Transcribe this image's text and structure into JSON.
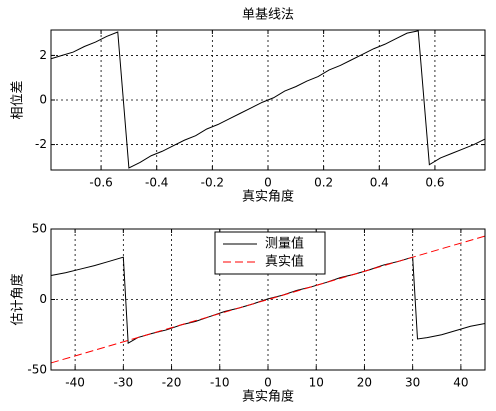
{
  "chart_data": [
    {
      "type": "line",
      "title": "单基线法",
      "xlabel": "真实角度",
      "ylabel": "相位差",
      "xlim": [
        -0.78,
        0.78
      ],
      "xticks": [
        -0.6,
        -0.4,
        -0.2,
        0,
        0.2,
        0.4,
        0.6
      ],
      "ylim": [
        -3.14,
        3.14
      ],
      "yticks": [
        -2,
        0,
        2
      ],
      "grid": true,
      "series": [
        {
          "color": "#000000",
          "linestyle": "-",
          "x": [
            -0.78,
            -0.74,
            -0.7,
            -0.66,
            -0.62,
            -0.58,
            -0.54,
            -0.5,
            -0.46,
            -0.42,
            -0.38,
            -0.34,
            -0.3,
            -0.26,
            -0.22,
            -0.18,
            -0.14,
            -0.1,
            -0.06,
            -0.02,
            0.02,
            0.06,
            0.1,
            0.14,
            0.18,
            0.22,
            0.26,
            0.3,
            0.34,
            0.38,
            0.42,
            0.46,
            0.5,
            0.54,
            0.58,
            0.62,
            0.66,
            0.7,
            0.74,
            0.78
          ],
          "values": [
            1.85,
            2.0,
            2.15,
            2.4,
            2.6,
            2.85,
            3.05,
            -3.05,
            -2.8,
            -2.5,
            -2.3,
            -2.05,
            -1.8,
            -1.6,
            -1.3,
            -1.1,
            -0.85,
            -0.6,
            -0.35,
            -0.1,
            0.1,
            0.4,
            0.6,
            0.85,
            1.05,
            1.35,
            1.55,
            1.8,
            2.05,
            2.3,
            2.5,
            2.75,
            3.0,
            3.1,
            -2.9,
            -2.6,
            -2.4,
            -2.2,
            -2.0,
            -1.75
          ]
        }
      ]
    },
    {
      "type": "line",
      "xlabel": "真实角度",
      "ylabel": "估计角度",
      "xlim": [
        -45,
        45
      ],
      "xticks": [
        -40,
        -30,
        -20,
        -10,
        0,
        10,
        20,
        30,
        40
      ],
      "ylim": [
        -50,
        50
      ],
      "yticks": [
        -50,
        0,
        50
      ],
      "grid": true,
      "legend": "top",
      "series": [
        {
          "name": "测量值",
          "color": "#000000",
          "linestyle": "-",
          "x": [
            -45,
            -42,
            -39,
            -36,
            -33,
            -30,
            -29,
            -27,
            -24,
            -21,
            -18,
            -15,
            -12,
            -9,
            -6,
            -3,
            0,
            3,
            6,
            9,
            12,
            15,
            18,
            21,
            24,
            27,
            30,
            31,
            33,
            36,
            39,
            42,
            45
          ],
          "values": [
            17,
            19,
            21.5,
            24,
            27,
            30,
            -31,
            -27,
            -24,
            -21.5,
            -18,
            -15.5,
            -12,
            -8.5,
            -6,
            -3,
            0.5,
            3,
            6.5,
            9,
            12,
            15.5,
            18,
            21,
            24.5,
            27,
            30,
            -28,
            -27,
            -25,
            -22,
            -19,
            -17
          ]
        },
        {
          "name": "真实值",
          "color": "#ff0000",
          "linestyle": "--",
          "x": [
            -45,
            45
          ],
          "values": [
            -45,
            45
          ]
        }
      ]
    }
  ]
}
